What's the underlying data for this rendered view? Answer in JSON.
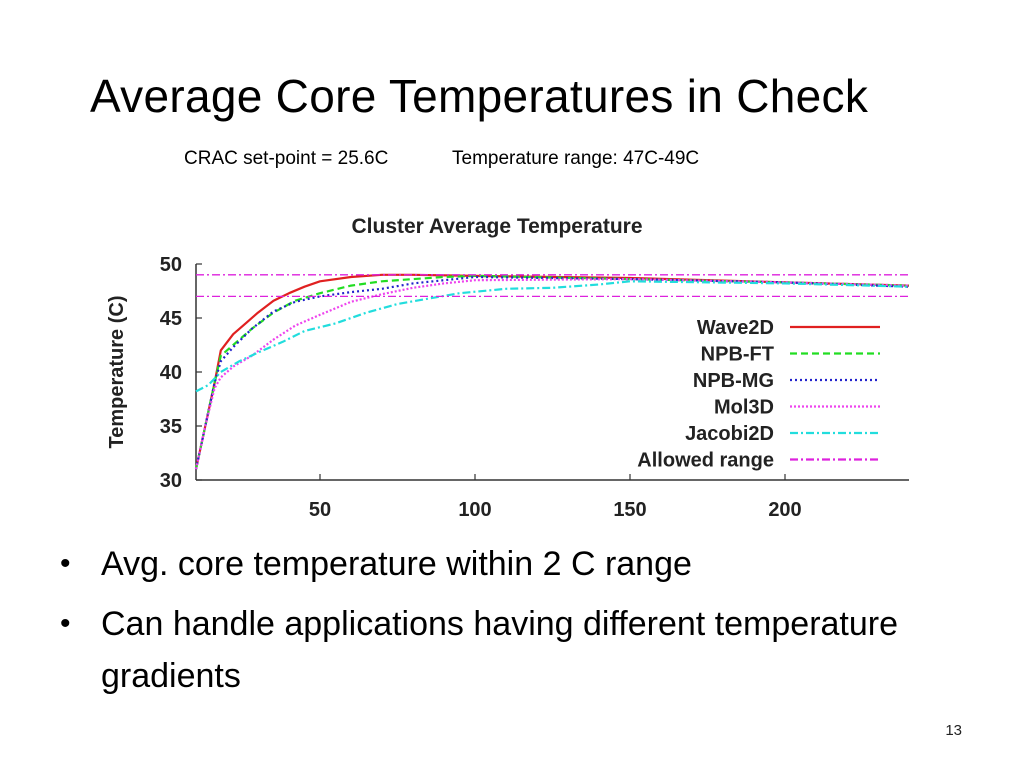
{
  "slide": {
    "title": "Average Core Temperatures in Check",
    "subtitle_setpoint": "CRAC set-point = 25.6C",
    "subtitle_range": "Temperature range: 47C-49C",
    "bullets": [
      "Avg. core temperature within 2 C range",
      "Can handle applications having different temperature gradients"
    ],
    "page_number": "13"
  },
  "chart_data": {
    "type": "line",
    "title": "Cluster Average Temperature",
    "xlabel": "",
    "ylabel": "Temperature (C)",
    "xlim": [
      10,
      240
    ],
    "ylim": [
      30,
      50
    ],
    "x_ticks": [
      50,
      100,
      150,
      200
    ],
    "y_ticks": [
      30,
      35,
      40,
      45,
      50
    ],
    "legend_position": "right",
    "series": [
      {
        "name": "Wave2D",
        "color": "#e02020",
        "dash": "",
        "points": [
          [
            10,
            31
          ],
          [
            13,
            35
          ],
          [
            16,
            39
          ],
          [
            18,
            42
          ],
          [
            22,
            43.5
          ],
          [
            26,
            44.5
          ],
          [
            30,
            45.5
          ],
          [
            35,
            46.6
          ],
          [
            40,
            47.3
          ],
          [
            45,
            47.9
          ],
          [
            50,
            48.4
          ],
          [
            60,
            48.8
          ],
          [
            70,
            49
          ],
          [
            80,
            49
          ],
          [
            100,
            48.9
          ],
          [
            150,
            48.7
          ],
          [
            200,
            48.3
          ],
          [
            240,
            48
          ]
        ]
      },
      {
        "name": "NPB-FT",
        "color": "#22dd22",
        "dash": "7,4",
        "points": [
          [
            10,
            31
          ],
          [
            13,
            35
          ],
          [
            16,
            39
          ],
          [
            18,
            41.5
          ],
          [
            22,
            42.5
          ],
          [
            28,
            44
          ],
          [
            35,
            45.5
          ],
          [
            42,
            46.6
          ],
          [
            50,
            47.3
          ],
          [
            60,
            48
          ],
          [
            70,
            48.4
          ],
          [
            80,
            48.6
          ],
          [
            90,
            48.8
          ],
          [
            100,
            48.9
          ],
          [
            150,
            48.6
          ],
          [
            200,
            48.3
          ],
          [
            240,
            48
          ]
        ]
      },
      {
        "name": "NPB-MG",
        "color": "#2222cc",
        "dash": "2,3",
        "points": [
          [
            10,
            31
          ],
          [
            13,
            35
          ],
          [
            16,
            39
          ],
          [
            18,
            41
          ],
          [
            22,
            42.3
          ],
          [
            28,
            44
          ],
          [
            35,
            45.6
          ],
          [
            42,
            46.5
          ],
          [
            50,
            47
          ],
          [
            60,
            47.4
          ],
          [
            70,
            47.7
          ],
          [
            80,
            48.2
          ],
          [
            90,
            48.5
          ],
          [
            100,
            48.8
          ],
          [
            150,
            48.6
          ],
          [
            200,
            48.3
          ],
          [
            240,
            47.9
          ]
        ]
      },
      {
        "name": "Mol3D",
        "color": "#ee44ee",
        "dash": "2,2",
        "points": [
          [
            10,
            31
          ],
          [
            13,
            35
          ],
          [
            16,
            38.5
          ],
          [
            18,
            39.5
          ],
          [
            22,
            40.5
          ],
          [
            28,
            41.5
          ],
          [
            35,
            43
          ],
          [
            42,
            44.3
          ],
          [
            50,
            45.3
          ],
          [
            60,
            46.5
          ],
          [
            70,
            47.2
          ],
          [
            80,
            47.8
          ],
          [
            90,
            48.2
          ],
          [
            100,
            48.5
          ],
          [
            150,
            48.6
          ],
          [
            200,
            48.3
          ],
          [
            240,
            48
          ]
        ]
      },
      {
        "name": "Jacobi2D",
        "color": "#22dddd",
        "dash": "8,3,2,3",
        "points": [
          [
            10,
            38.2
          ],
          [
            14,
            38.8
          ],
          [
            18,
            40
          ],
          [
            24,
            41
          ],
          [
            30,
            41.8
          ],
          [
            38,
            42.8
          ],
          [
            45,
            43.8
          ],
          [
            55,
            44.5
          ],
          [
            65,
            45.5
          ],
          [
            75,
            46.3
          ],
          [
            85,
            46.8
          ],
          [
            95,
            47.3
          ],
          [
            110,
            47.7
          ],
          [
            125,
            47.8
          ],
          [
            140,
            48.1
          ],
          [
            150,
            48.4
          ],
          [
            200,
            48.2
          ],
          [
            240,
            47.9
          ]
        ]
      },
      {
        "name": "Allowed range",
        "color": "#dd22dd",
        "dash": "8,3,2,3",
        "lines": [
          47,
          49
        ]
      }
    ]
  }
}
